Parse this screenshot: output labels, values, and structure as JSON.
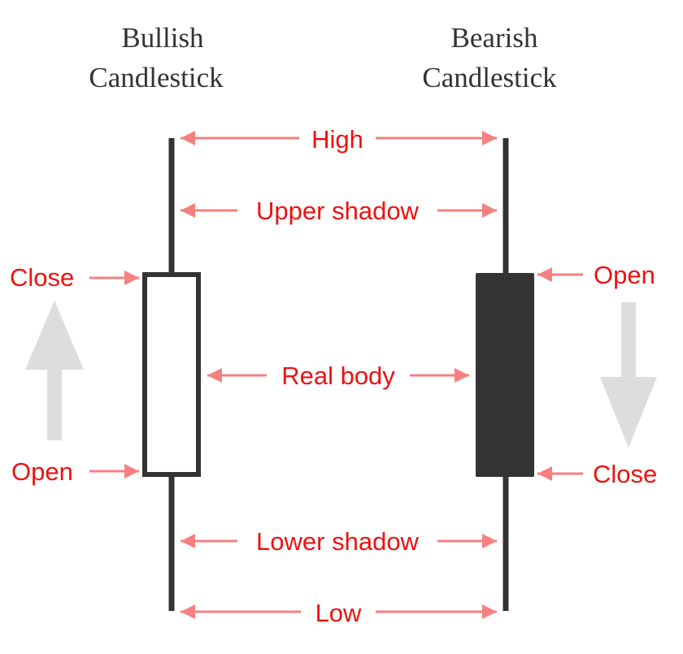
{
  "titles": {
    "bullish_line1": "Bullish",
    "bullish_line2": "Candlestick",
    "bearish_line1": "Bearish",
    "bearish_line2": "Candlestick"
  },
  "labels": {
    "high": "High",
    "upper_shadow": "Upper shadow",
    "real_body": "Real body",
    "lower_shadow": "Lower shadow",
    "low": "Low",
    "bullish_close": "Close",
    "bullish_open": "Open",
    "bearish_open": "Open",
    "bearish_close": "Close"
  },
  "colors": {
    "title": "#333333",
    "candle": "#333333",
    "label": "#ee1111",
    "annotation_arrow": "#f58080",
    "trend_arrow": "#dddddd",
    "background": "#ffffff"
  }
}
